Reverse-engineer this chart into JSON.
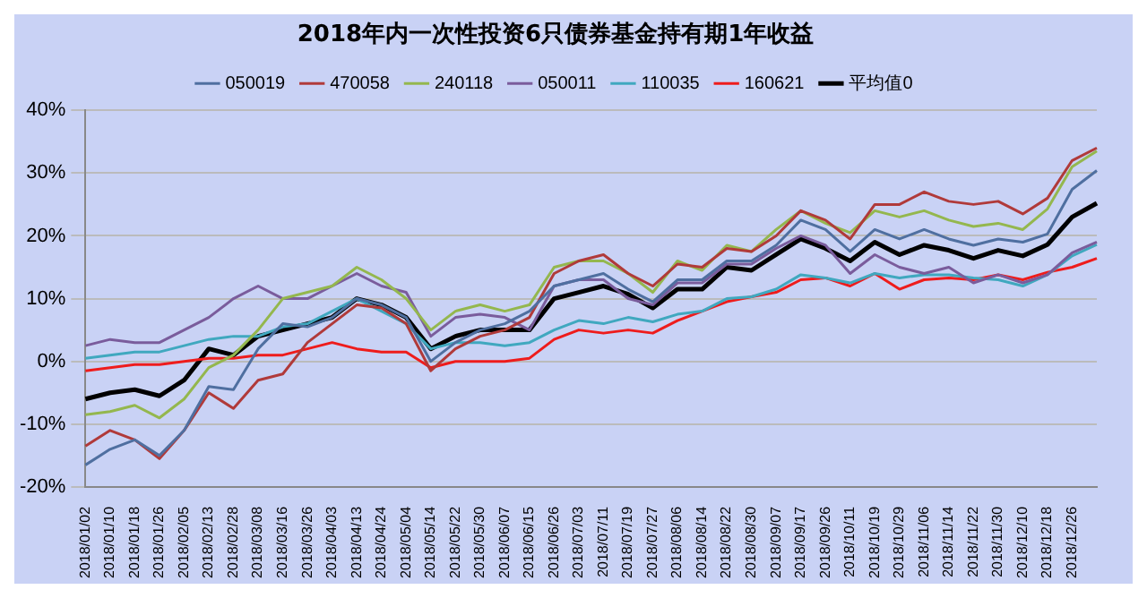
{
  "chart_data": {
    "type": "line",
    "title": "2018年内一次性投资6只债券基金持有期1年收益",
    "categories": [
      "2018/01/02",
      "2018/01/10",
      "2018/01/18",
      "2018/01/26",
      "2018/02/05",
      "2018/02/13",
      "2018/02/28",
      "2018/03/08",
      "2018/03/16",
      "2018/03/26",
      "2018/04/03",
      "2018/04/13",
      "2018/04/24",
      "2018/05/04",
      "2018/05/14",
      "2018/05/22",
      "2018/05/30",
      "2018/06/07",
      "2018/06/15",
      "2018/06/26",
      "2018/07/03",
      "2018/07/11",
      "2018/07/19",
      "2018/07/27",
      "2018/08/06",
      "2018/08/14",
      "2018/08/22",
      "2018/08/30",
      "2018/09/07",
      "2018/09/17",
      "2018/09/26",
      "2018/10/11",
      "2018/10/19",
      "2018/10/29",
      "2018/11/06",
      "2018/11/14",
      "2018/11/22",
      "2018/11/30",
      "2018/12/10",
      "2018/12/18",
      "2018/12/26",
      null
    ],
    "series": [
      {
        "name": "050019",
        "color": "#4f6fa0",
        "values": [
          -16.5,
          -14,
          -12.5,
          -15,
          -11,
          -4,
          -4.5,
          2,
          6,
          5.5,
          7,
          10,
          9,
          7,
          0,
          3,
          5,
          6,
          8,
          12,
          13,
          14,
          11.5,
          9.5,
          13,
          13,
          16,
          16,
          18.5,
          22.5,
          21,
          17.5,
          21,
          19.5,
          21,
          19.5,
          18.5,
          19.5,
          19,
          20.3,
          27.4,
          30.4
        ]
      },
      {
        "name": "470058",
        "color": "#b03a3a",
        "values": [
          -13.5,
          -11,
          -12.5,
          -15.5,
          -11,
          -5,
          -7.5,
          -3,
          -2,
          3,
          6,
          9,
          8.5,
          6,
          -1.5,
          2,
          4,
          5,
          7,
          14,
          16,
          17,
          14,
          12,
          15.5,
          15,
          18,
          17.5,
          20,
          24,
          22.5,
          19.5,
          25,
          25,
          27,
          25.5,
          25,
          25.5,
          23.5,
          26,
          32,
          34
        ]
      },
      {
        "name": "240118",
        "color": "#94b74e",
        "values": [
          -8.5,
          -8,
          -7,
          -9,
          -6,
          -1,
          1,
          5,
          10,
          11,
          12,
          15,
          13,
          10,
          5,
          8,
          9,
          8,
          9,
          15,
          16,
          16,
          14,
          11,
          16,
          14.5,
          18.5,
          17.5,
          21,
          24,
          22,
          20.5,
          24,
          23,
          24,
          22.5,
          21.5,
          22,
          21,
          24.3,
          31,
          33.5
        ]
      },
      {
        "name": "050011",
        "color": "#7a5c9c",
        "values": [
          2.5,
          3.5,
          3,
          3,
          5,
          7,
          10,
          12,
          10,
          10,
          12,
          14,
          12,
          11,
          4,
          7,
          7.5,
          7,
          5,
          12,
          13,
          13,
          10,
          9,
          12.5,
          12.5,
          15.5,
          15.5,
          18,
          20,
          18.5,
          14,
          17,
          15,
          14,
          15,
          12.5,
          13.8,
          12.5,
          13.8,
          17.3,
          19
        ]
      },
      {
        "name": "110035",
        "color": "#40a8bf",
        "values": [
          0.5,
          1,
          1.5,
          1.5,
          2.5,
          3.5,
          4,
          4,
          5.5,
          6,
          8,
          10,
          8,
          6,
          2,
          3,
          3,
          2.5,
          3,
          5,
          6.5,
          6,
          7,
          6.3,
          7.5,
          8,
          10,
          10.3,
          11.5,
          13.8,
          13.3,
          12.5,
          14,
          13.3,
          13.8,
          13.8,
          13.3,
          13,
          12,
          13.8,
          16.8,
          18.6
        ]
      },
      {
        "name": "160621",
        "color": "#ee1c1c",
        "values": [
          -1.5,
          -1,
          -0.5,
          -0.5,
          0,
          0.5,
          0.5,
          1,
          1,
          2,
          3,
          2,
          1.5,
          1.5,
          -1,
          0,
          0,
          0,
          0.5,
          3.5,
          5,
          4.5,
          5,
          4.5,
          6.5,
          8,
          9.5,
          10.3,
          11,
          13,
          13.3,
          12,
          14,
          11.5,
          13,
          13.3,
          13,
          13.8,
          13,
          14.2,
          15,
          16.4
        ]
      },
      {
        "name": "平均值0",
        "color": "#000000",
        "values": [
          -6,
          -5,
          -4.5,
          -5.5,
          -3,
          2,
          1,
          4,
          5,
          6,
          7,
          10,
          9,
          7,
          2,
          4,
          5,
          5,
          5,
          10,
          11,
          12,
          10.7,
          8.5,
          11.5,
          11.5,
          15,
          14.5,
          17,
          19.5,
          18,
          16,
          19,
          17,
          18.5,
          17.7,
          16.4,
          17.7,
          16.8,
          18.6,
          23,
          25.2
        ]
      }
    ],
    "ylim": [
      -20,
      40
    ],
    "yticks": [
      {
        "value": -20,
        "label": "-20%"
      },
      {
        "value": -10,
        "label": "-10%"
      },
      {
        "value": 0,
        "label": "0%"
      },
      {
        "value": 10,
        "label": "10%"
      },
      {
        "value": 20,
        "label": "20%"
      },
      {
        "value": 30,
        "label": "30%"
      },
      {
        "value": 40,
        "label": "40%"
      }
    ],
    "grid": "y",
    "legend": "top",
    "marker": "none",
    "line_style": "solid"
  }
}
